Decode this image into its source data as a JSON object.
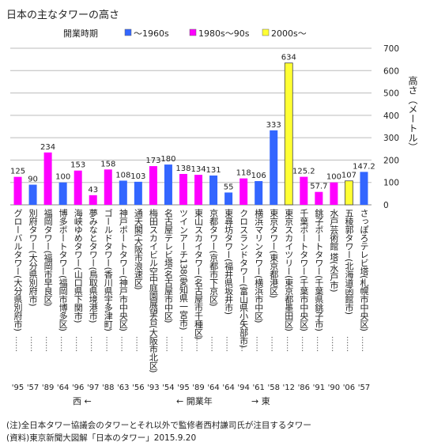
{
  "title": "日本の主なタワーの高さ",
  "legend": {
    "label": "開業時期",
    "items": [
      {
        "name": "〜1960s",
        "color": "#3366ff"
      },
      {
        "name": "1980s〜90s",
        "color": "#ff00ff"
      },
      {
        "name": "2000s〜",
        "color": "#ffff33"
      }
    ]
  },
  "notes": {
    "note1": "(注)全日本タワー協議会のタワーとそれ以外で監修者西村謙司氏が注目するタワー",
    "note2": "(資料)東京新聞大図解「日本のタワー」2015.9.20"
  },
  "chart_data": {
    "type": "bar",
    "title": "日本の主なタワーの高さ",
    "ylabel": "高さ（メートル）",
    "xlabel": "開業年",
    "ylim": [
      0,
      700
    ],
    "yticks": [
      0,
      100,
      200,
      300,
      400,
      500,
      600,
      700
    ],
    "grid": true,
    "legend_position": "top",
    "direction": {
      "west": "西",
      "east": "東",
      "west_arrow": "←",
      "east_arrow": "→"
    },
    "leader": "……",
    "era_colors": {
      "1960s": "#3366ff",
      "1980s": "#ff00ff",
      "2000s": "#ffff33"
    },
    "categories": [
      {
        "name": "グローバルタワー(大分県別府市)",
        "value": 125,
        "label": "125",
        "year": "'95",
        "era": "1980s"
      },
      {
        "name": "別府タワー(大分県別府市)",
        "value": 90,
        "label": "90",
        "year": "'57",
        "era": "1960s"
      },
      {
        "name": "福岡タワー(福岡市早良区)",
        "value": 234,
        "label": "234",
        "year": "'89",
        "era": "1980s"
      },
      {
        "name": "博多ポートタワー(福岡市博多区)",
        "value": 100,
        "label": "100",
        "year": "'64",
        "era": "1960s"
      },
      {
        "name": "海峡ゆめタワー(山口県下関市)",
        "value": 153,
        "label": "153",
        "year": "'96",
        "era": "1980s"
      },
      {
        "name": "夢みなとタワー(鳥取県境港市)",
        "value": 43,
        "label": "43",
        "year": "'97",
        "era": "1980s"
      },
      {
        "name": "ゴールドタワー(香川県宇多津町)",
        "value": 158,
        "label": "158",
        "year": "'88",
        "era": "1980s"
      },
      {
        "name": "神戸ポートタワー(神戸市中央区)",
        "value": 108,
        "label": "108",
        "year": "'63",
        "era": "1960s"
      },
      {
        "name": "通天閣(大阪市浪速区)",
        "value": 103,
        "label": "103",
        "year": "'56",
        "era": "1960s"
      },
      {
        "name": "梅田スカイビル空中庭園展望台(大阪市北区)",
        "value": 173,
        "label": "173",
        "year": "'93",
        "era": "1980s"
      },
      {
        "name": "名古屋テレビ塔(名古屋市中区)",
        "value": 180,
        "label": "180",
        "year": "'54",
        "era": "1960s"
      },
      {
        "name": "ツインアーチ138(愛知県一宮市)",
        "value": 138,
        "label": "138",
        "year": "'95",
        "era": "1980s"
      },
      {
        "name": "東山スカイタワー(名古屋市千種区)",
        "value": 134,
        "label": "134",
        "year": "'89",
        "era": "1980s"
      },
      {
        "name": "京都タワー(京都市下京区)",
        "value": 131,
        "label": "131",
        "year": "'64",
        "era": "1960s"
      },
      {
        "name": "東尋坊タワー(福井県坂井市)",
        "value": 55,
        "label": "55",
        "year": "'64",
        "era": "1960s"
      },
      {
        "name": "クロスランドタワー(富山県小矢部市)",
        "value": 118,
        "label": "118",
        "year": "'94",
        "era": "1980s"
      },
      {
        "name": "横浜マリンタワー(横浜市中区)",
        "value": 106,
        "label": "106",
        "year": "'61",
        "era": "1960s"
      },
      {
        "name": "東京タワー(東京都港区)",
        "value": 333,
        "label": "333",
        "year": "'58",
        "era": "1960s"
      },
      {
        "name": "東京スカイツリー(東京都墨田区)",
        "value": 634,
        "label": "634",
        "year": "'12",
        "era": "2000s"
      },
      {
        "name": "千葉ポートタワー(千葉市中央区)",
        "value": 125.2,
        "label": "125.2",
        "year": "'86",
        "era": "1980s"
      },
      {
        "name": "銚子ポートタワー(千葉県銚子市)",
        "value": 57.7,
        "label": "57.7",
        "year": "'91",
        "era": "1980s"
      },
      {
        "name": "水戸芸術館 塔(水戸市)",
        "value": 100,
        "label": "100",
        "year": "'90",
        "era": "1980s"
      },
      {
        "name": "五稜郭タワー(北海道函館市)",
        "value": 107,
        "label": "107",
        "year": "'06",
        "era": "2000s"
      },
      {
        "name": "さっぽろテレビ塔(札幌市中央区)",
        "value": 147.2,
        "label": "147.2",
        "year": "'57",
        "era": "1960s"
      }
    ]
  }
}
